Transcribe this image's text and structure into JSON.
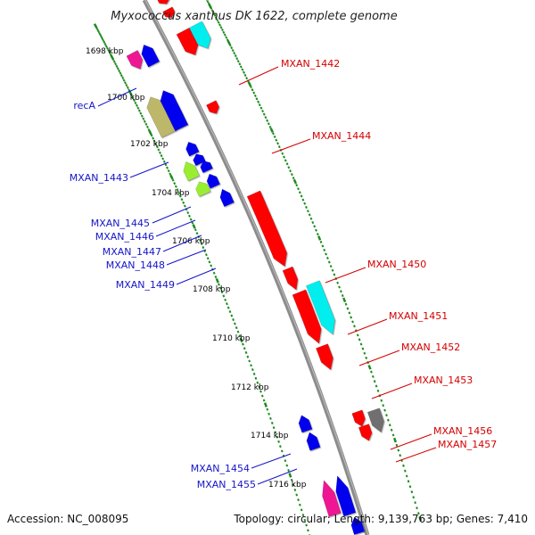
{
  "title": "Myxococcus xanthus DK 1622, complete genome",
  "footer": {
    "accession": "Accession: NC_008095",
    "stats": "Topology: circular; Length: 9,139,763 bp; Genes: 7,410"
  },
  "colors": {
    "backbone": "#8c8c8c",
    "ticks": "#1e8a1e",
    "forward_labels": "#d40000",
    "reverse_labels": "#1515c8",
    "cds_red": "#ff0000",
    "cds_blue": "#0000ee",
    "cds_cyan": "#00eeee",
    "cds_magenta": "#ee1493",
    "cds_khaki": "#bdb76b",
    "cds_green": "#99ee33",
    "cds_grey": "#707070"
  },
  "kbp_labels": [
    "1698 kbp",
    "1700 kbp",
    "1702 kbp",
    "1704 kbp",
    "1706 kbp",
    "1708 kbp",
    "1710 kbp",
    "1712 kbp",
    "1714 kbp",
    "1716 kbp"
  ],
  "forward_genes": [
    "MXAN_1442",
    "MXAN_1444",
    "MXAN_1450",
    "MXAN_1451",
    "MXAN_1452",
    "MXAN_1453",
    "MXAN_1456",
    "MXAN_1457"
  ],
  "reverse_genes": [
    "recA",
    "MXAN_1443",
    "MXAN_1445",
    "MXAN_1446",
    "MXAN_1447",
    "MXAN_1448",
    "MXAN_1449",
    "MXAN_1454",
    "MXAN_1455"
  ]
}
